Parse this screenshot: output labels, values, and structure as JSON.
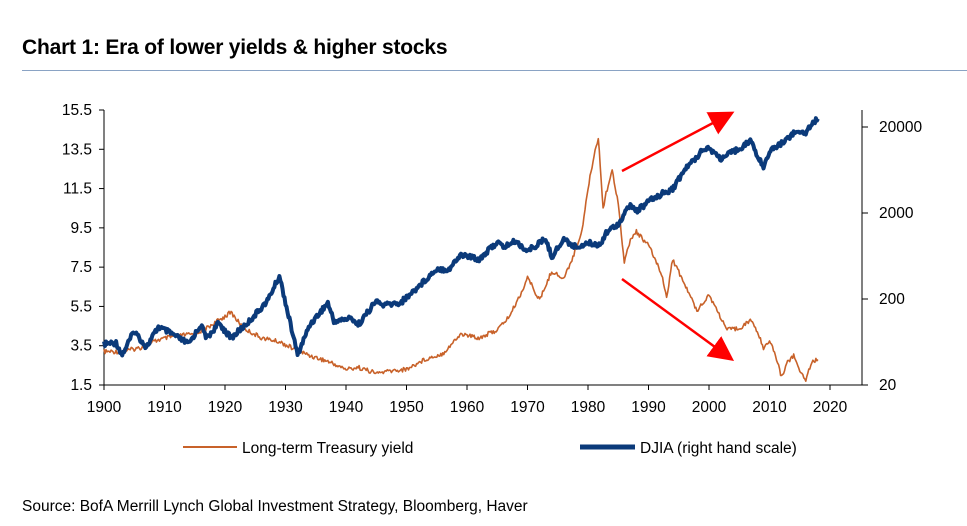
{
  "title": "Chart 1: Era of lower yields & higher stocks",
  "source": "Source: BofA Merrill Lynch Global Investment Strategy, Bloomberg, Haver",
  "chart_data": {
    "type": "line",
    "x_ticks": [
      "1900",
      "1910",
      "1920",
      "1930",
      "1940",
      "1950",
      "1960",
      "1970",
      "1980",
      "1990",
      "2000",
      "2010",
      "2020"
    ],
    "xlim": [
      1900,
      2022
    ],
    "y_left_ticks": [
      "15.5",
      "13.5",
      "11.5",
      "9.5",
      "7.5",
      "5.5",
      "3.5",
      "1.5"
    ],
    "y_left_lim": [
      1.5,
      15.5
    ],
    "y_right_ticks": [
      "20000",
      "2000",
      "200",
      "20"
    ],
    "y_right_scale": "log",
    "y_right_lim": [
      20,
      30000
    ],
    "legend_position": "bottom",
    "grid": false,
    "series": [
      {
        "name": "Long-term Treasury yield",
        "axis": "left",
        "color": "#c8622a",
        "points": [
          [
            1900,
            3.2
          ],
          [
            1903,
            3.2
          ],
          [
            1906,
            3.4
          ],
          [
            1909,
            3.8
          ],
          [
            1912,
            4.0
          ],
          [
            1915,
            4.1
          ],
          [
            1917,
            4.4
          ],
          [
            1920,
            5.0
          ],
          [
            1921,
            5.2
          ],
          [
            1923,
            4.4
          ],
          [
            1926,
            3.9
          ],
          [
            1929,
            3.7
          ],
          [
            1931,
            3.4
          ],
          [
            1934,
            3.0
          ],
          [
            1937,
            2.7
          ],
          [
            1940,
            2.3
          ],
          [
            1942,
            2.4
          ],
          [
            1945,
            2.1
          ],
          [
            1947,
            2.2
          ],
          [
            1950,
            2.3
          ],
          [
            1953,
            2.8
          ],
          [
            1956,
            3.1
          ],
          [
            1959,
            4.1
          ],
          [
            1962,
            3.9
          ],
          [
            1965,
            4.3
          ],
          [
            1967,
            5.0
          ],
          [
            1969,
            6.2
          ],
          [
            1970,
            7.0
          ],
          [
            1972,
            5.8
          ],
          [
            1974,
            7.3
          ],
          [
            1976,
            6.9
          ],
          [
            1978,
            8.4
          ],
          [
            1979,
            9.4
          ],
          [
            1980,
            11.5
          ],
          [
            1981,
            13.2
          ],
          [
            1981.7,
            14.1
          ],
          [
            1982.5,
            10.5
          ],
          [
            1983,
            11.3
          ],
          [
            1984,
            12.4
          ],
          [
            1985,
            10.8
          ],
          [
            1986,
            7.7
          ],
          [
            1987,
            8.9
          ],
          [
            1988,
            9.3
          ],
          [
            1990,
            8.6
          ],
          [
            1992,
            7.3
          ],
          [
            1993,
            6.0
          ],
          [
            1994,
            7.9
          ],
          [
            1996,
            6.6
          ],
          [
            1998,
            5.3
          ],
          [
            2000,
            6.1
          ],
          [
            2001,
            5.5
          ],
          [
            2003,
            4.3
          ],
          [
            2005,
            4.4
          ],
          [
            2007,
            4.8
          ],
          [
            2008,
            4.2
          ],
          [
            2009,
            3.4
          ],
          [
            2010,
            3.8
          ],
          [
            2011,
            3.0
          ],
          [
            2012,
            1.9
          ],
          [
            2013,
            2.7
          ],
          [
            2014,
            3.0
          ],
          [
            2015,
            2.2
          ],
          [
            2016,
            1.8
          ],
          [
            2017,
            2.7
          ],
          [
            2018,
            2.8
          ]
        ]
      },
      {
        "name": "DJIA (right hand scale)",
        "axis": "right",
        "color": "#0b3a7a",
        "points": [
          [
            1900,
            60
          ],
          [
            1902,
            62
          ],
          [
            1903,
            45
          ],
          [
            1905,
            85
          ],
          [
            1907,
            55
          ],
          [
            1909,
            95
          ],
          [
            1911,
            80
          ],
          [
            1914,
            60
          ],
          [
            1916,
            100
          ],
          [
            1917,
            70
          ],
          [
            1919,
            105
          ],
          [
            1921,
            70
          ],
          [
            1924,
            110
          ],
          [
            1927,
            190
          ],
          [
            1929,
            370
          ],
          [
            1931,
            90
          ],
          [
            1932,
            45
          ],
          [
            1934,
            100
          ],
          [
            1937,
            180
          ],
          [
            1938,
            110
          ],
          [
            1941,
            120
          ],
          [
            1942,
            100
          ],
          [
            1945,
            190
          ],
          [
            1946,
            170
          ],
          [
            1949,
            180
          ],
          [
            1952,
            280
          ],
          [
            1955,
            450
          ],
          [
            1957,
            440
          ],
          [
            1959,
            660
          ],
          [
            1962,
            580
          ],
          [
            1965,
            920
          ],
          [
            1966,
            800
          ],
          [
            1968,
            940
          ],
          [
            1970,
            720
          ],
          [
            1973,
            1000
          ],
          [
            1974,
            620
          ],
          [
            1976,
            990
          ],
          [
            1978,
            800
          ],
          [
            1980,
            900
          ],
          [
            1982,
            850
          ],
          [
            1983,
            1200
          ],
          [
            1985,
            1500
          ],
          [
            1987,
            2500
          ],
          [
            1988,
            2100
          ],
          [
            1990,
            2700
          ],
          [
            1992,
            3300
          ],
          [
            1994,
            3800
          ],
          [
            1996,
            6400
          ],
          [
            1998,
            9000
          ],
          [
            1999,
            11300
          ],
          [
            2000,
            11400
          ],
          [
            2002,
            8500
          ],
          [
            2004,
            10300
          ],
          [
            2006,
            12500
          ],
          [
            2007,
            13900
          ],
          [
            2008,
            9000
          ],
          [
            2009,
            7000
          ],
          [
            2010,
            10500
          ],
          [
            2012,
            13000
          ],
          [
            2014,
            17000
          ],
          [
            2016,
            17500
          ],
          [
            2017,
            22000
          ],
          [
            2018,
            25000
          ]
        ]
      }
    ]
  }
}
